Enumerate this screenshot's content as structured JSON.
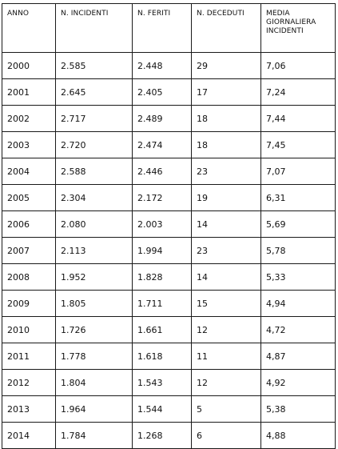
{
  "table": {
    "headers": [
      "ANNO",
      "N. INCIDENTI",
      "N. FERITI",
      "N. DECEDUTI",
      "MEDIA GIORNALIERA INCIDENTI"
    ],
    "rows": [
      [
        "2000",
        "2.585",
        "2.448",
        "29",
        "7,06"
      ],
      [
        "2001",
        "2.645",
        "2.405",
        "17",
        "7,24"
      ],
      [
        "2002",
        "2.717",
        "2.489",
        "18",
        "7,44"
      ],
      [
        "2003",
        "2.720",
        "2.474",
        "18",
        "7,45"
      ],
      [
        "2004",
        "2.588",
        "2.446",
        "23",
        "7,07"
      ],
      [
        "2005",
        "2.304",
        "2.172",
        "19",
        "6,31"
      ],
      [
        "2006",
        "2.080",
        "2.003",
        "14",
        "5,69"
      ],
      [
        "2007",
        "2.113",
        "1.994",
        "23",
        "5,78"
      ],
      [
        "2008",
        "1.952",
        "1.828",
        "14",
        "5,33"
      ],
      [
        "2009",
        "1.805",
        "1.711",
        "15",
        "4,94"
      ],
      [
        "2010",
        "1.726",
        "1.661",
        "12",
        "4,72"
      ],
      [
        "2011",
        "1.778",
        "1.618",
        "11",
        "4,87"
      ],
      [
        "2012",
        "1.804",
        "1.543",
        "12",
        "4,92"
      ],
      [
        "2013",
        "1.964",
        "1.544",
        "5",
        "5,38"
      ],
      [
        "2014",
        "1.784",
        "1.268",
        "6",
        "4,88"
      ]
    ]
  }
}
